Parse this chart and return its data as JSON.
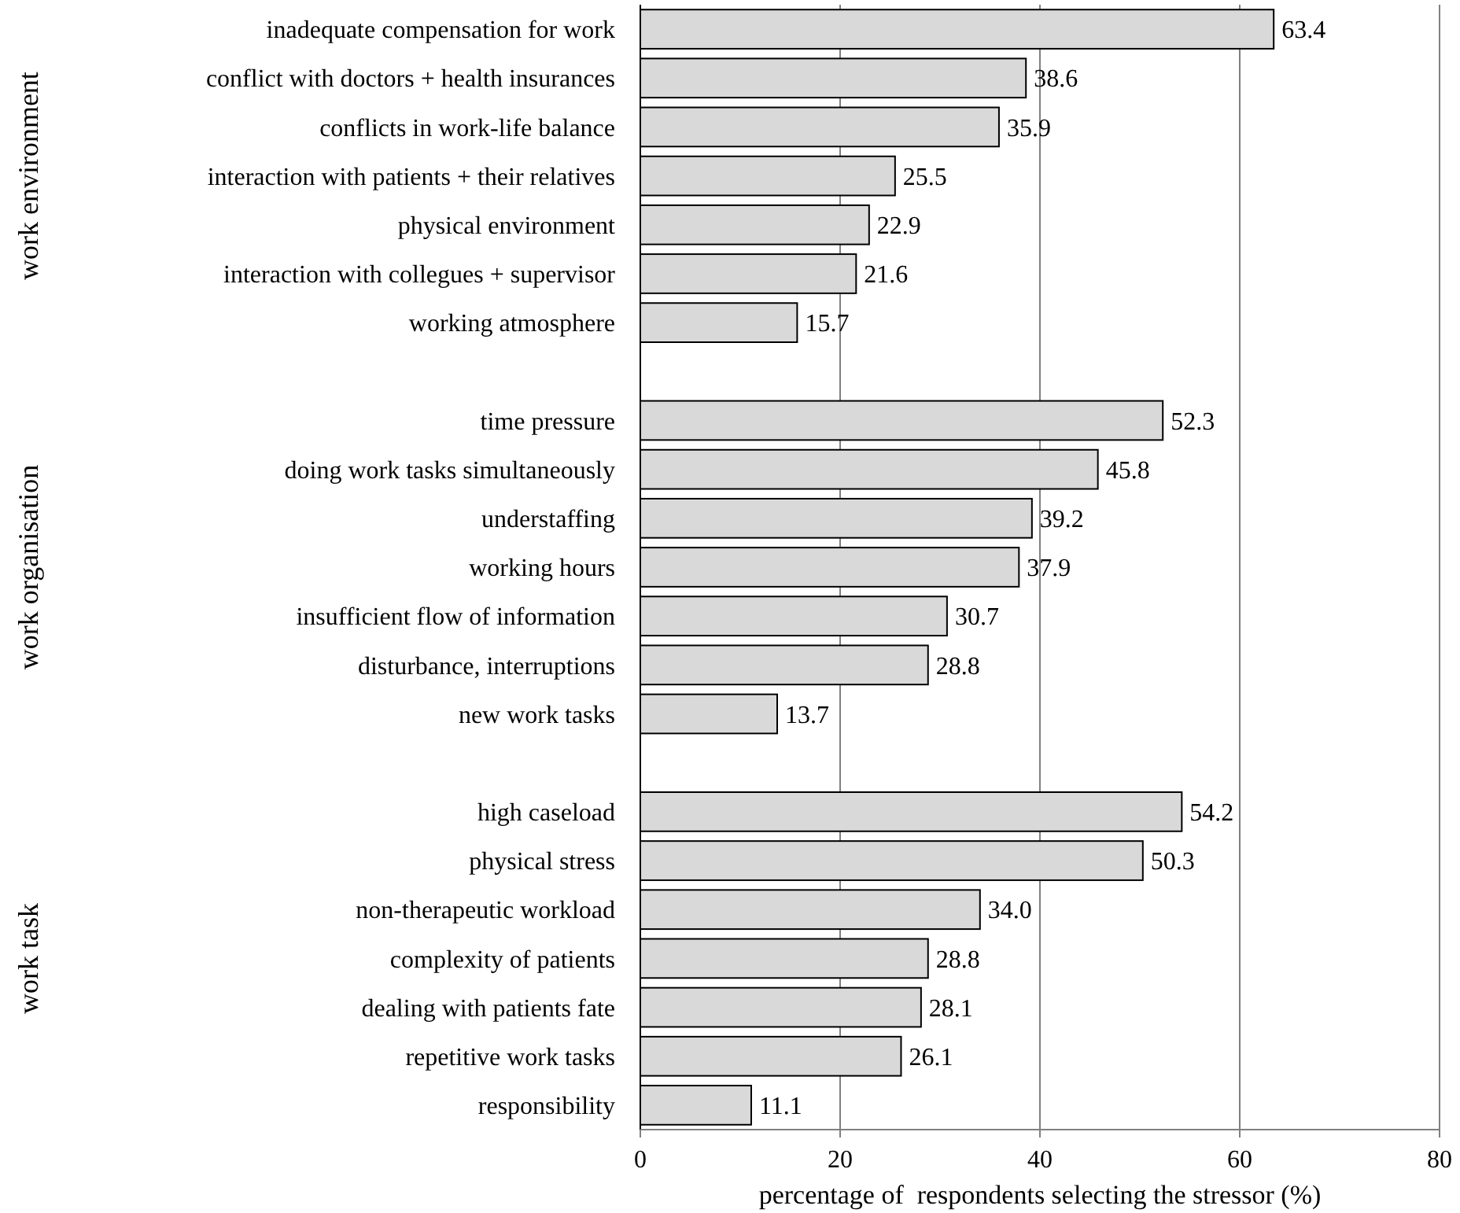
{
  "chart_data": {
    "type": "bar",
    "orientation": "horizontal",
    "xlabel": "percentage of  respondents selecting the stressor (%)",
    "categories": [
      "inadequate compensation for work",
      "conflict with doctors + health insurances",
      "conflicts in work-life balance",
      "interaction with patients + their relatives",
      "physical environment",
      "interaction with collegues + supervisor",
      "working atmosphere",
      null,
      "time pressure",
      "doing work tasks simultaneously",
      "understaffing",
      "working hours",
      "insufficient flow of information",
      "disturbance, interruptions",
      "new work tasks",
      null,
      "high caseload",
      "physical stress",
      "non-therapeutic workload",
      "complexity of patients",
      "dealing with patients fate",
      "repetitive work tasks",
      "responsibility"
    ],
    "values": [
      63.4,
      38.6,
      35.9,
      25.5,
      22.9,
      21.6,
      15.7,
      null,
      52.3,
      45.8,
      39.2,
      37.9,
      30.7,
      28.8,
      13.7,
      null,
      54.2,
      50.3,
      34.0,
      28.8,
      28.1,
      26.1,
      11.1
    ],
    "value_labels": [
      "63.4",
      "38.6",
      "35.9",
      "25.5",
      "22.9",
      "21.6",
      "15.7",
      null,
      "52.3",
      "45.8",
      "39.2",
      "37.9",
      "30.7",
      "28.8",
      "13.7",
      null,
      "54.2",
      "50.3",
      "34.0",
      "28.8",
      "28.1",
      "26.1",
      "11.1"
    ],
    "color": "#d9d9d9",
    "xlim": [
      0,
      80
    ],
    "xticks": [
      0,
      20,
      40,
      60,
      80
    ],
    "grid": "x",
    "annotations": [
      "work environment",
      "work organisation",
      "work task"
    ]
  }
}
